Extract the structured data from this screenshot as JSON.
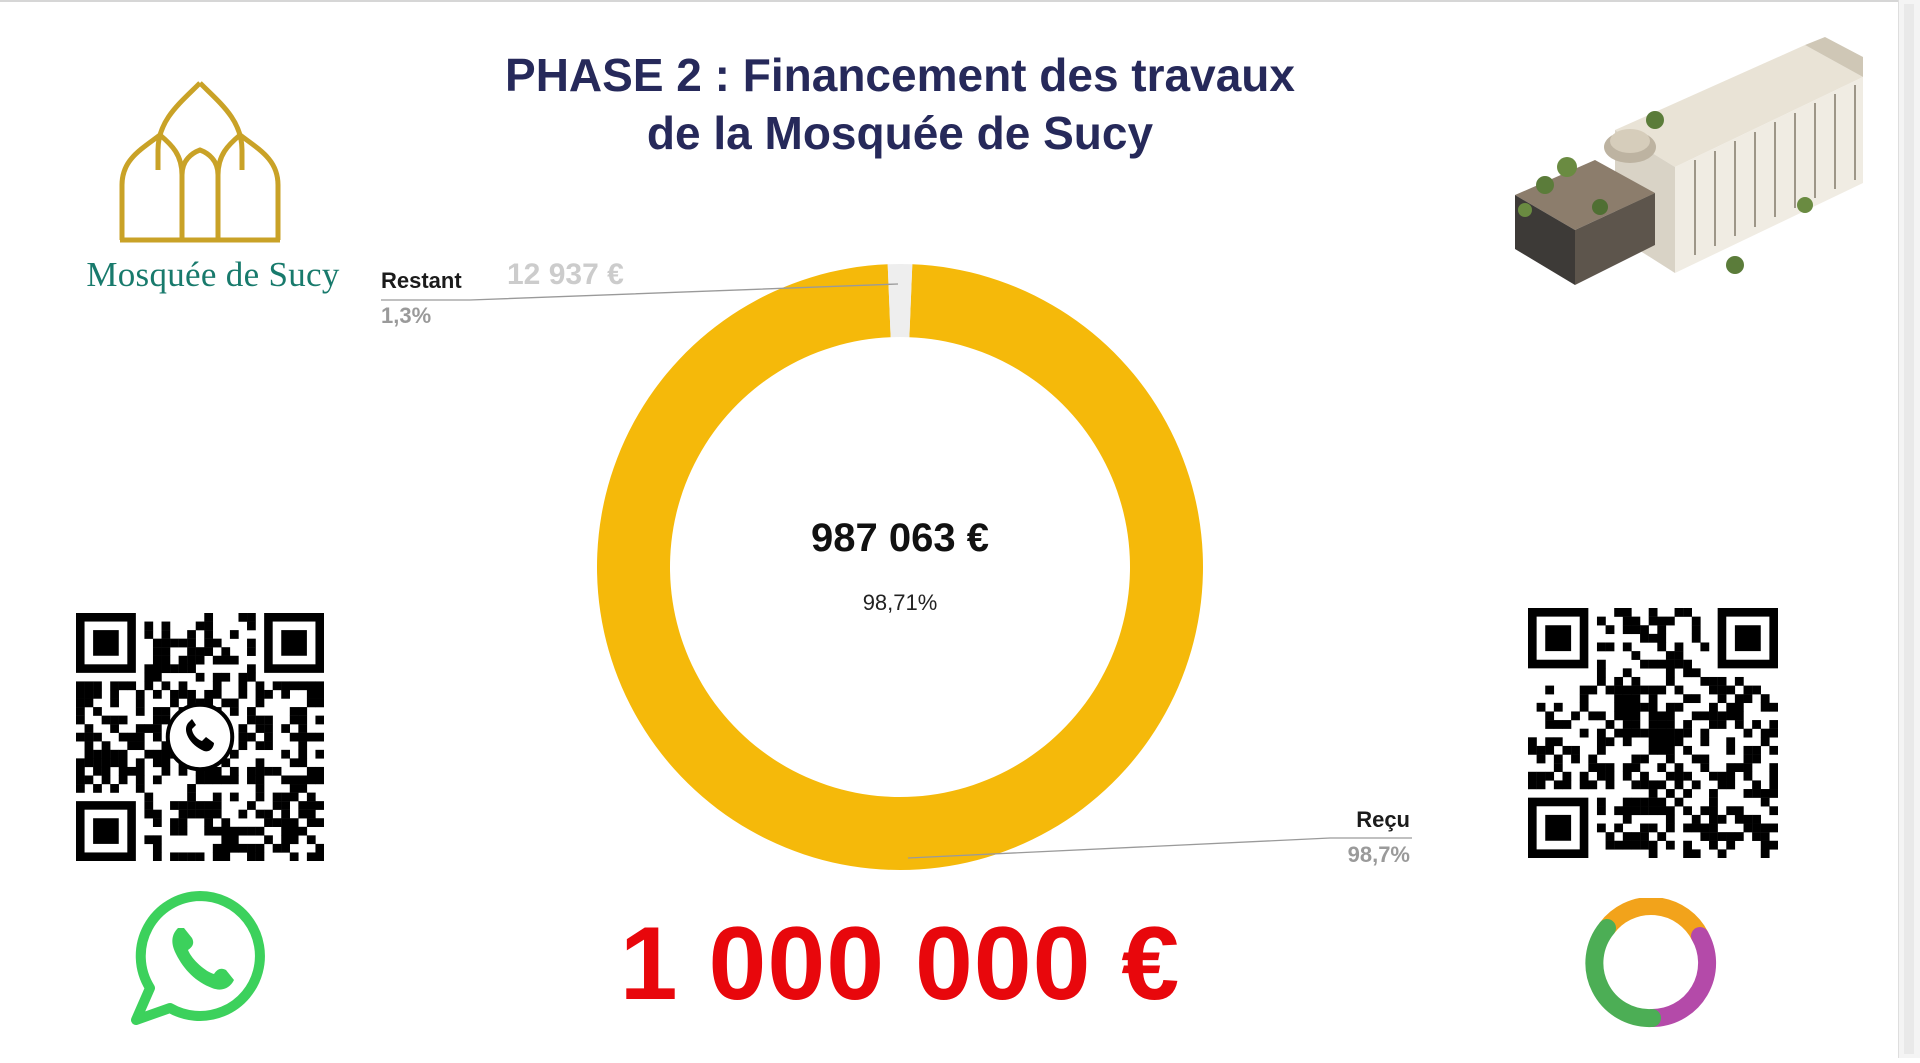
{
  "title": {
    "line1": "PHASE 2 : Financement des travaux",
    "line2": "de la Mosquée de Sucy"
  },
  "logo": {
    "text": "Mosquée de Sucy",
    "icon": "mosque-domes-icon",
    "color": "#c9a227",
    "text_color": "#187a6c"
  },
  "chart_data": {
    "type": "pie",
    "variant": "donut",
    "center_value": "987 063 €",
    "center_percent": "98,71%",
    "slices": [
      {
        "label": "Reçu",
        "value": 987063,
        "percent_label": "98,7%",
        "color": "#f5b90a"
      },
      {
        "label": "Restant",
        "value": 12937,
        "value_label": "12 937 €",
        "percent_label": "1,3%",
        "color": "#eeeeee"
      }
    ],
    "goal": "1 000 000 €"
  },
  "qr_left": {
    "icon": "whatsapp-qr-code"
  },
  "qr_right": {
    "icon": "donation-qr-code"
  },
  "whatsapp": {
    "icon": "whatsapp-icon",
    "color": "#3cd15c"
  },
  "ring_logo": {
    "icon": "ring-logo-icon"
  },
  "colors": {
    "title": "#26295a",
    "goal": "#e8070c",
    "received": "#f5b90a",
    "remaining": "#eeeeee"
  }
}
